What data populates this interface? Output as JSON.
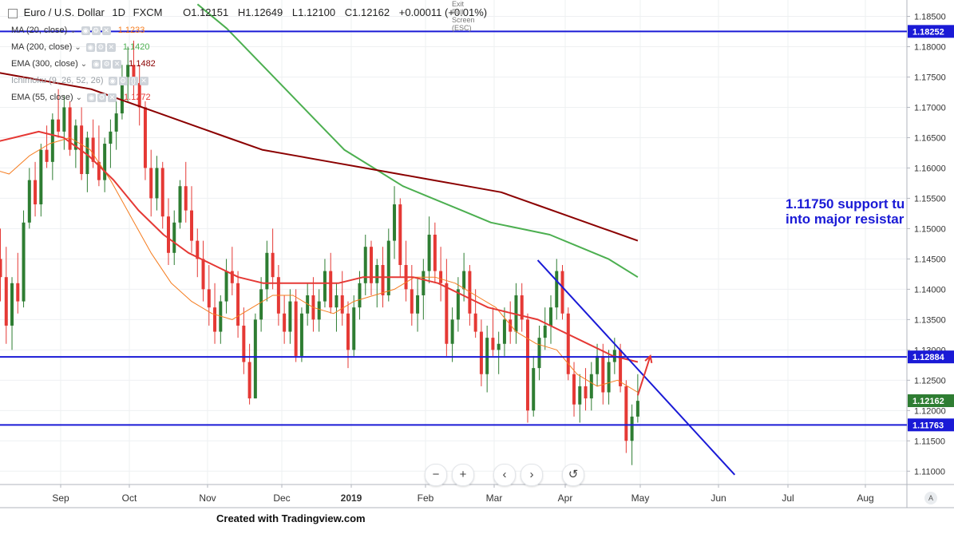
{
  "header": {
    "symbol": "Euro / U.S. Dollar",
    "interval": "1D",
    "source": "FXCM",
    "open": "O1.12151",
    "high": "H1.12649",
    "low": "L1.12100",
    "close": "C1.12162",
    "change": "+0.00011 (+0.01%)",
    "exit_fullscreen": "Exit Full Screen (ESC)"
  },
  "indicators": [
    {
      "label": "MA (20, close)",
      "value": "1.1233",
      "color": "#f57c1f"
    },
    {
      "label": "MA (200, close)",
      "value": "1.1420",
      "color": "#4caf50"
    },
    {
      "label": "EMA (300, close)",
      "value": "1.1482",
      "color": "#8b0000"
    },
    {
      "label": "Ichimoku (9, 26, 52, 26)",
      "value": "",
      "color": "#9aa0a6"
    },
    {
      "label": "EMA (55, close)",
      "value": "1.1272",
      "color": "#e53935"
    }
  ],
  "annotation": {
    "line1": "1.11750 support tu",
    "line2": "into major resistar"
  },
  "footer": {
    "text": "Created with Tradingview.com"
  },
  "nav": {
    "zoom_out": "−",
    "zoom_in": "+",
    "prev": "‹",
    "next": "›",
    "reset": "↺",
    "auto": "A"
  },
  "colors": {
    "up": "#2e7d32",
    "down": "#e53935",
    "level_line": "#1a1ad6",
    "price_tag_last": "#2e7d32",
    "price_tag_level": "#1a1ad6"
  },
  "chart_data": {
    "type": "candlestick",
    "title": "Euro / U.S. Dollar, 1D, FXCM",
    "x_ticks": [
      "Sep",
      "Oct",
      "Nov",
      "Dec",
      "2019",
      "Feb",
      "Mar",
      "Apr",
      "May",
      "Jun",
      "Jul",
      "Aug"
    ],
    "y_ticks": [
      "1.18500",
      "1.18000",
      "1.17500",
      "1.17000",
      "1.16500",
      "1.16000",
      "1.15500",
      "1.15000",
      "1.14500",
      "1.14000",
      "1.13500",
      "1.13000",
      "1.12500",
      "1.12000",
      "1.11500",
      "1.11000"
    ],
    "ylim": [
      1.1078,
      1.1877
    ],
    "candles_x_range": [
      "2018-08-01",
      "2019-04-30"
    ],
    "ohlc": [
      [
        1.162,
        1.171,
        1.15,
        1.152
      ],
      [
        1.152,
        1.155,
        1.141,
        1.145
      ],
      [
        1.145,
        1.15,
        1.138,
        1.142
      ],
      [
        1.142,
        1.147,
        1.131,
        1.134
      ],
      [
        1.134,
        1.142,
        1.13,
        1.141
      ],
      [
        1.141,
        1.146,
        1.136,
        1.138
      ],
      [
        1.138,
        1.153,
        1.137,
        1.151
      ],
      [
        1.151,
        1.16,
        1.15,
        1.158
      ],
      [
        1.158,
        1.161,
        1.152,
        1.154
      ],
      [
        1.154,
        1.164,
        1.152,
        1.163
      ],
      [
        1.163,
        1.167,
        1.16,
        1.161
      ],
      [
        1.161,
        1.169,
        1.158,
        1.168
      ],
      [
        1.168,
        1.173,
        1.165,
        1.166
      ],
      [
        1.166,
        1.172,
        1.163,
        1.17
      ],
      [
        1.17,
        1.171,
        1.162,
        1.163
      ],
      [
        1.163,
        1.168,
        1.16,
        1.167
      ],
      [
        1.167,
        1.17,
        1.158,
        1.159
      ],
      [
        1.159,
        1.166,
        1.156,
        1.165
      ],
      [
        1.165,
        1.168,
        1.16,
        1.161
      ],
      [
        1.161,
        1.167,
        1.157,
        1.158
      ],
      [
        1.158,
        1.165,
        1.156,
        1.164
      ],
      [
        1.164,
        1.168,
        1.16,
        1.166
      ],
      [
        1.166,
        1.171,
        1.163,
        1.169
      ],
      [
        1.169,
        1.177,
        1.168,
        1.175
      ],
      [
        1.175,
        1.18,
        1.171,
        1.177
      ],
      [
        1.177,
        1.181,
        1.172,
        1.174
      ],
      [
        1.174,
        1.177,
        1.167,
        1.17
      ],
      [
        1.17,
        1.171,
        1.158,
        1.16
      ],
      [
        1.16,
        1.163,
        1.152,
        1.155
      ],
      [
        1.155,
        1.162,
        1.153,
        1.16
      ],
      [
        1.16,
        1.161,
        1.15,
        1.152
      ],
      [
        1.152,
        1.155,
        1.144,
        1.146
      ],
      [
        1.146,
        1.153,
        1.144,
        1.151
      ],
      [
        1.151,
        1.158,
        1.15,
        1.157
      ],
      [
        1.157,
        1.161,
        1.151,
        1.153
      ],
      [
        1.153,
        1.157,
        1.146,
        1.148
      ],
      [
        1.148,
        1.15,
        1.142,
        1.145
      ],
      [
        1.145,
        1.148,
        1.138,
        1.14
      ],
      [
        1.14,
        1.144,
        1.134,
        1.137
      ],
      [
        1.137,
        1.141,
        1.131,
        1.133
      ],
      [
        1.133,
        1.139,
        1.131,
        1.138
      ],
      [
        1.138,
        1.145,
        1.136,
        1.143
      ],
      [
        1.143,
        1.147,
        1.139,
        1.141
      ],
      [
        1.141,
        1.143,
        1.132,
        1.134
      ],
      [
        1.134,
        1.137,
        1.126,
        1.128
      ],
      [
        1.128,
        1.131,
        1.121,
        1.122
      ],
      [
        1.122,
        1.136,
        1.122,
        1.135
      ],
      [
        1.135,
        1.142,
        1.133,
        1.14
      ],
      [
        1.14,
        1.148,
        1.138,
        1.146
      ],
      [
        1.146,
        1.15,
        1.14,
        1.142
      ],
      [
        1.142,
        1.144,
        1.134,
        1.136
      ],
      [
        1.136,
        1.139,
        1.131,
        1.133
      ],
      [
        1.133,
        1.14,
        1.131,
        1.138
      ],
      [
        1.138,
        1.14,
        1.128,
        1.129
      ],
      [
        1.129,
        1.137,
        1.128,
        1.136
      ],
      [
        1.136,
        1.141,
        1.134,
        1.139
      ],
      [
        1.139,
        1.142,
        1.133,
        1.135
      ],
      [
        1.135,
        1.14,
        1.133,
        1.138
      ],
      [
        1.138,
        1.145,
        1.137,
        1.143
      ],
      [
        1.143,
        1.146,
        1.136,
        1.137
      ],
      [
        1.137,
        1.141,
        1.133,
        1.139
      ],
      [
        1.139,
        1.143,
        1.134,
        1.136
      ],
      [
        1.136,
        1.138,
        1.127,
        1.13
      ],
      [
        1.13,
        1.139,
        1.129,
        1.137
      ],
      [
        1.137,
        1.143,
        1.135,
        1.141
      ],
      [
        1.141,
        1.149,
        1.139,
        1.147
      ],
      [
        1.147,
        1.148,
        1.139,
        1.141
      ],
      [
        1.141,
        1.145,
        1.137,
        1.144
      ],
      [
        1.144,
        1.147,
        1.137,
        1.139
      ],
      [
        1.139,
        1.15,
        1.138,
        1.148
      ],
      [
        1.148,
        1.157,
        1.145,
        1.154
      ],
      [
        1.154,
        1.155,
        1.142,
        1.144
      ],
      [
        1.144,
        1.148,
        1.138,
        1.14
      ],
      [
        1.14,
        1.144,
        1.134,
        1.136
      ],
      [
        1.136,
        1.142,
        1.133,
        1.139
      ],
      [
        1.139,
        1.145,
        1.135,
        1.143
      ],
      [
        1.143,
        1.152,
        1.141,
        1.149
      ],
      [
        1.149,
        1.151,
        1.141,
        1.143
      ],
      [
        1.143,
        1.147,
        1.138,
        1.141
      ],
      [
        1.141,
        1.145,
        1.129,
        1.131
      ],
      [
        1.131,
        1.137,
        1.128,
        1.135
      ],
      [
        1.135,
        1.142,
        1.133,
        1.14
      ],
      [
        1.14,
        1.146,
        1.138,
        1.143
      ],
      [
        1.143,
        1.144,
        1.134,
        1.136
      ],
      [
        1.136,
        1.14,
        1.132,
        1.133
      ],
      [
        1.133,
        1.135,
        1.124,
        1.126
      ],
      [
        1.126,
        1.134,
        1.123,
        1.132
      ],
      [
        1.132,
        1.137,
        1.129,
        1.13
      ],
      [
        1.13,
        1.133,
        1.126,
        1.131
      ],
      [
        1.131,
        1.137,
        1.129,
        1.135
      ],
      [
        1.135,
        1.138,
        1.131,
        1.133
      ],
      [
        1.133,
        1.141,
        1.131,
        1.139
      ],
      [
        1.139,
        1.141,
        1.133,
        1.135
      ],
      [
        1.135,
        1.136,
        1.118,
        1.12
      ],
      [
        1.12,
        1.129,
        1.119,
        1.127
      ],
      [
        1.127,
        1.134,
        1.125,
        1.132
      ],
      [
        1.132,
        1.137,
        1.13,
        1.134
      ],
      [
        1.134,
        1.139,
        1.131,
        1.137
      ],
      [
        1.137,
        1.145,
        1.135,
        1.143
      ],
      [
        1.143,
        1.144,
        1.135,
        1.136
      ],
      [
        1.136,
        1.137,
        1.125,
        1.126
      ],
      [
        1.126,
        1.128,
        1.119,
        1.121
      ],
      [
        1.121,
        1.126,
        1.118,
        1.124
      ],
      [
        1.124,
        1.127,
        1.12,
        1.122
      ],
      [
        1.122,
        1.128,
        1.12,
        1.126
      ],
      [
        1.126,
        1.131,
        1.124,
        1.129
      ],
      [
        1.129,
        1.131,
        1.121,
        1.123
      ],
      [
        1.123,
        1.13,
        1.121,
        1.128
      ],
      [
        1.128,
        1.132,
        1.126,
        1.13
      ],
      [
        1.13,
        1.131,
        1.123,
        1.124
      ],
      [
        1.124,
        1.125,
        1.113,
        1.115
      ],
      [
        1.115,
        1.121,
        1.111,
        1.119
      ],
      [
        1.119,
        1.126,
        1.118,
        1.1216
      ]
    ],
    "moving_averages": [
      {
        "name": "MA (20, close)",
        "color": "#f57c1f",
        "y": [
          1.16,
          1.159,
          1.162,
          1.164,
          1.165,
          1.163,
          1.158,
          1.152,
          1.146,
          1.141,
          1.138,
          1.136,
          1.135,
          1.137,
          1.139,
          1.139,
          1.137,
          1.136,
          1.138,
          1.139,
          1.14,
          1.142,
          1.142,
          1.141,
          1.139,
          1.137,
          1.133,
          1.131,
          1.13,
          1.126,
          1.124,
          1.125,
          1.123
        ]
      },
      {
        "name": "MA (200, close)",
        "color": "#4caf50",
        "y": [
          1.187,
          1.183,
          1.178,
          1.173,
          1.168,
          1.163,
          1.16,
          1.157,
          1.155,
          1.153,
          1.151,
          1.15,
          1.149,
          1.147,
          1.145,
          1.142
        ]
      },
      {
        "name": "EMA (300, close)",
        "color": "#8b0000",
        "y": [
          1.176,
          1.175,
          1.174,
          1.173,
          1.171,
          1.169,
          1.167,
          1.165,
          1.163,
          1.162,
          1.161,
          1.16,
          1.159,
          1.158,
          1.157,
          1.156,
          1.154,
          1.152,
          1.15,
          1.148
        ]
      },
      {
        "name": "EMA (55, close)",
        "color": "#e53935",
        "y": [
          1.164,
          1.165,
          1.166,
          1.165,
          1.162,
          1.158,
          1.153,
          1.149,
          1.146,
          1.144,
          1.142,
          1.141,
          1.141,
          1.141,
          1.141,
          1.142,
          1.142,
          1.142,
          1.141,
          1.139,
          1.137,
          1.136,
          1.135,
          1.133,
          1.131,
          1.129,
          1.128
        ]
      }
    ],
    "horizontal_levels": [
      {
        "value": 1.18252,
        "label": "1.18252"
      },
      {
        "value": 1.12884,
        "label": "1.12884"
      },
      {
        "value": 1.11763,
        "label": "1.11763"
      }
    ],
    "last_price": {
      "value": 1.12162,
      "label": "1.12162"
    },
    "trendline": {
      "from": {
        "date": "2019-03-20",
        "price": 1.1448
      },
      "to": {
        "date": "2019-06-08",
        "price": 1.1094
      }
    },
    "arrow": {
      "from": {
        "date": "2019-04-30",
        "price": 1.1225
      },
      "to": {
        "date": "2019-05-05",
        "price": 1.129
      }
    }
  }
}
